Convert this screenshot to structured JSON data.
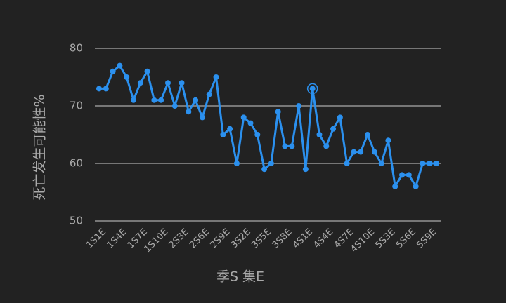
{
  "chart_data": {
    "type": "line",
    "x_label": "季S 集E",
    "y_label": "死亡发生可能性%",
    "categories": [
      "1S1E",
      null,
      null,
      "1S4E",
      null,
      null,
      "1S7E",
      null,
      null,
      "1S10E",
      null,
      null,
      "2S3E",
      null,
      null,
      "2S6E",
      null,
      null,
      "2S9E",
      null,
      null,
      "3S2E",
      null,
      null,
      "3S5E",
      null,
      null,
      "3S8E",
      null,
      null,
      "4S1E",
      null,
      null,
      "4S4E",
      null,
      null,
      "4S7E",
      null,
      null,
      "4S10E",
      null,
      null,
      "5S3E",
      null,
      null,
      "5S6E",
      null,
      null,
      "5S9E",
      null
    ],
    "values": [
      73,
      73,
      76,
      77,
      75,
      71,
      74,
      76,
      71,
      71,
      74,
      70,
      74,
      69,
      71,
      68,
      72,
      75,
      65,
      66,
      60,
      68,
      67,
      65,
      59,
      60,
      69,
      63,
      63,
      70,
      59,
      73,
      65,
      63,
      66,
      68,
      60,
      62,
      62,
      65,
      62,
      60,
      64,
      56,
      58,
      58,
      56,
      60,
      60,
      60
    ],
    "color": "#2b90ee",
    "ylim": [
      50,
      80
    ],
    "yticks": [
      50,
      60,
      70,
      80
    ],
    "grid": true,
    "hover_index": 31
  }
}
